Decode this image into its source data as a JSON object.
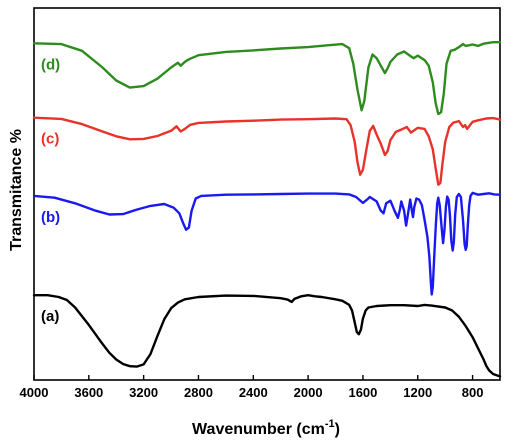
{
  "chart_data": {
    "type": "line",
    "xlabel": "Wavenumber (cm",
    "xlabel_sup": "-1",
    "xlabel_close": ")",
    "ylabel": "Transmitance %",
    "xlim": [
      4000,
      600
    ],
    "x_ticks": [
      4000,
      3600,
      3200,
      2800,
      2400,
      2000,
      1600,
      1200,
      800
    ],
    "x_tick_labels": [
      "4000",
      "3600",
      "3200",
      "2800",
      "2400",
      "2000",
      "1600",
      "1200",
      "800"
    ],
    "y_ticks_shown": false,
    "ylim": [
      0,
      100
    ],
    "grid": false,
    "series": [
      {
        "name": "(d)",
        "color": "#2e8b1e",
        "points": [
          [
            4000,
            90.5
          ],
          [
            3800,
            90.3
          ],
          [
            3650,
            88.5
          ],
          [
            3500,
            84.0
          ],
          [
            3400,
            80.5
          ],
          [
            3300,
            78.6
          ],
          [
            3200,
            79.0
          ],
          [
            3100,
            81.0
          ],
          [
            3000,
            84.0
          ],
          [
            2950,
            85.3
          ],
          [
            2930,
            84.5
          ],
          [
            2900,
            85.5
          ],
          [
            2870,
            86.2
          ],
          [
            2800,
            87.3
          ],
          [
            2600,
            88.2
          ],
          [
            2400,
            88.6
          ],
          [
            2200,
            89.1
          ],
          [
            2000,
            89.5
          ],
          [
            1850,
            90.0
          ],
          [
            1750,
            90.3
          ],
          [
            1700,
            89.2
          ],
          [
            1670,
            85.0
          ],
          [
            1640,
            78.0
          ],
          [
            1610,
            72.5
          ],
          [
            1590,
            75.0
          ],
          [
            1560,
            84.0
          ],
          [
            1530,
            87.5
          ],
          [
            1500,
            86.5
          ],
          [
            1470,
            84.5
          ],
          [
            1440,
            82.5
          ],
          [
            1420,
            83.8
          ],
          [
            1400,
            85.5
          ],
          [
            1350,
            87.5
          ],
          [
            1300,
            88.3
          ],
          [
            1250,
            87.0
          ],
          [
            1230,
            86.5
          ],
          [
            1200,
            87.2
          ],
          [
            1150,
            86.0
          ],
          [
            1120,
            84.5
          ],
          [
            1090,
            80.0
          ],
          [
            1070,
            74.5
          ],
          [
            1050,
            71.5
          ],
          [
            1030,
            72.0
          ],
          [
            1010,
            77.0
          ],
          [
            990,
            85.0
          ],
          [
            960,
            88.5
          ],
          [
            930,
            88.8
          ],
          [
            900,
            89.5
          ],
          [
            870,
            90.3
          ],
          [
            850,
            89.8
          ],
          [
            800,
            90.2
          ],
          [
            760,
            89.8
          ],
          [
            720,
            90.4
          ],
          [
            650,
            90.8
          ],
          [
            600,
            90.8
          ]
        ]
      },
      {
        "name": "(c)",
        "color": "#e8322a",
        "points": [
          [
            4000,
            70.5
          ],
          [
            3800,
            70.2
          ],
          [
            3650,
            68.8
          ],
          [
            3500,
            66.8
          ],
          [
            3400,
            65.5
          ],
          [
            3300,
            64.7
          ],
          [
            3200,
            64.8
          ],
          [
            3100,
            65.6
          ],
          [
            3000,
            67.0
          ],
          [
            2960,
            68.2
          ],
          [
            2930,
            66.8
          ],
          [
            2900,
            67.5
          ],
          [
            2860,
            68.6
          ],
          [
            2800,
            69.1
          ],
          [
            2600,
            69.5
          ],
          [
            2400,
            69.7
          ],
          [
            2200,
            70.0
          ],
          [
            2000,
            70.1
          ],
          [
            1800,
            70.3
          ],
          [
            1720,
            70.1
          ],
          [
            1690,
            68.5
          ],
          [
            1660,
            64.0
          ],
          [
            1640,
            58.5
          ],
          [
            1620,
            55.2
          ],
          [
            1600,
            56.5
          ],
          [
            1575,
            62.0
          ],
          [
            1550,
            67.0
          ],
          [
            1525,
            68.3
          ],
          [
            1500,
            66.0
          ],
          [
            1470,
            63.5
          ],
          [
            1440,
            60.5
          ],
          [
            1420,
            61.5
          ],
          [
            1400,
            64.5
          ],
          [
            1360,
            66.7
          ],
          [
            1320,
            67.3
          ],
          [
            1280,
            68.0
          ],
          [
            1250,
            66.5
          ],
          [
            1200,
            67.8
          ],
          [
            1150,
            67.5
          ],
          [
            1120,
            65.5
          ],
          [
            1090,
            62.0
          ],
          [
            1070,
            57.0
          ],
          [
            1050,
            52.5
          ],
          [
            1035,
            53.0
          ],
          [
            1020,
            58.0
          ],
          [
            1000,
            64.0
          ],
          [
            970,
            68.0
          ],
          [
            940,
            69.2
          ],
          [
            900,
            69.6
          ],
          [
            870,
            68.0
          ],
          [
            855,
            68.5
          ],
          [
            840,
            67.5
          ],
          [
            800,
            69.4
          ],
          [
            760,
            69.8
          ],
          [
            700,
            70.3
          ],
          [
            650,
            70.4
          ],
          [
            600,
            70.0
          ]
        ]
      },
      {
        "name": "(b)",
        "color": "#1a1af0",
        "points": [
          [
            4000,
            49.5
          ],
          [
            3850,
            49.0
          ],
          [
            3700,
            47.5
          ],
          [
            3550,
            45.5
          ],
          [
            3450,
            44.5
          ],
          [
            3350,
            44.6
          ],
          [
            3250,
            45.8
          ],
          [
            3150,
            46.8
          ],
          [
            3050,
            47.3
          ],
          [
            2980,
            46.3
          ],
          [
            2940,
            44.8
          ],
          [
            2910,
            42.0
          ],
          [
            2890,
            40.4
          ],
          [
            2870,
            41.0
          ],
          [
            2850,
            45.5
          ],
          [
            2820,
            48.8
          ],
          [
            2780,
            49.5
          ],
          [
            2600,
            49.8
          ],
          [
            2400,
            49.9
          ],
          [
            2200,
            50.0
          ],
          [
            2000,
            50.1
          ],
          [
            1800,
            50.1
          ],
          [
            1700,
            49.9
          ],
          [
            1650,
            49.2
          ],
          [
            1600,
            47.6
          ],
          [
            1570,
            48.5
          ],
          [
            1550,
            49.2
          ],
          [
            1500,
            48.0
          ],
          [
            1470,
            45.5
          ],
          [
            1450,
            44.8
          ],
          [
            1430,
            47.5
          ],
          [
            1400,
            48.2
          ],
          [
            1370,
            45.5
          ],
          [
            1345,
            43.6
          ],
          [
            1330,
            45.8
          ],
          [
            1320,
            48.0
          ],
          [
            1300,
            45.5
          ],
          [
            1285,
            41.5
          ],
          [
            1270,
            45.0
          ],
          [
            1255,
            48.5
          ],
          [
            1245,
            46.0
          ],
          [
            1235,
            43.8
          ],
          [
            1225,
            46.5
          ],
          [
            1210,
            48.8
          ],
          [
            1190,
            48.5
          ],
          [
            1170,
            47.0
          ],
          [
            1150,
            43.0
          ],
          [
            1130,
            38.5
          ],
          [
            1115,
            33.0
          ],
          [
            1105,
            26.5
          ],
          [
            1098,
            23.0
          ],
          [
            1090,
            25.0
          ],
          [
            1080,
            33.0
          ],
          [
            1068,
            42.0
          ],
          [
            1058,
            47.5
          ],
          [
            1050,
            49.0
          ],
          [
            1040,
            47.0
          ],
          [
            1025,
            40.5
          ],
          [
            1015,
            36.8
          ],
          [
            1005,
            40.5
          ],
          [
            995,
            46.5
          ],
          [
            985,
            49.3
          ],
          [
            975,
            48.5
          ],
          [
            965,
            44.0
          ],
          [
            955,
            37.5
          ],
          [
            945,
            34.8
          ],
          [
            937,
            37.0
          ],
          [
            927,
            44.5
          ],
          [
            915,
            49.2
          ],
          [
            900,
            50.0
          ],
          [
            885,
            49.2
          ],
          [
            870,
            43.0
          ],
          [
            858,
            36.5
          ],
          [
            850,
            35.0
          ],
          [
            843,
            36.0
          ],
          [
            835,
            41.5
          ],
          [
            825,
            47.0
          ],
          [
            815,
            49.5
          ],
          [
            800,
            50.3
          ],
          [
            760,
            49.8
          ],
          [
            720,
            50.0
          ],
          [
            680,
            50.2
          ],
          [
            640,
            49.9
          ],
          [
            600,
            49.8
          ]
        ]
      },
      {
        "name": "(a)",
        "color": "#000000",
        "points": [
          [
            4000,
            22.8
          ],
          [
            3900,
            22.8
          ],
          [
            3820,
            22.3
          ],
          [
            3760,
            21.5
          ],
          [
            3700,
            19.5
          ],
          [
            3600,
            14.8
          ],
          [
            3500,
            9.7
          ],
          [
            3450,
            7.3
          ],
          [
            3400,
            5.5
          ],
          [
            3350,
            4.3
          ],
          [
            3300,
            3.7
          ],
          [
            3250,
            3.6
          ],
          [
            3200,
            4.2
          ],
          [
            3150,
            7.0
          ],
          [
            3100,
            11.8
          ],
          [
            3050,
            16.3
          ],
          [
            3000,
            19.3
          ],
          [
            2950,
            20.8
          ],
          [
            2900,
            21.7
          ],
          [
            2800,
            22.3
          ],
          [
            2600,
            22.7
          ],
          [
            2400,
            22.6
          ],
          [
            2200,
            22.0
          ],
          [
            2150,
            21.6
          ],
          [
            2120,
            21.0
          ],
          [
            2100,
            21.8
          ],
          [
            2050,
            22.5
          ],
          [
            2000,
            22.8
          ],
          [
            1950,
            22.5
          ],
          [
            1900,
            22.3
          ],
          [
            1800,
            21.7
          ],
          [
            1750,
            21.3
          ],
          [
            1700,
            20.2
          ],
          [
            1680,
            18.7
          ],
          [
            1660,
            15.5
          ],
          [
            1645,
            12.9
          ],
          [
            1630,
            12.3
          ],
          [
            1615,
            13.5
          ],
          [
            1600,
            16.5
          ],
          [
            1580,
            18.7
          ],
          [
            1560,
            19.5
          ],
          [
            1500,
            19.9
          ],
          [
            1400,
            20.1
          ],
          [
            1300,
            20.1
          ],
          [
            1200,
            19.9
          ],
          [
            1150,
            20.2
          ],
          [
            1100,
            20.0
          ],
          [
            1000,
            19.5
          ],
          [
            950,
            18.7
          ],
          [
            900,
            17.0
          ],
          [
            850,
            14.5
          ],
          [
            800,
            11.5
          ],
          [
            760,
            8.5
          ],
          [
            720,
            5.5
          ],
          [
            700,
            3.8
          ],
          [
            680,
            2.6
          ],
          [
            650,
            1.6
          ],
          [
            620,
            1.2
          ],
          [
            600,
            1.0
          ]
        ]
      }
    ]
  }
}
